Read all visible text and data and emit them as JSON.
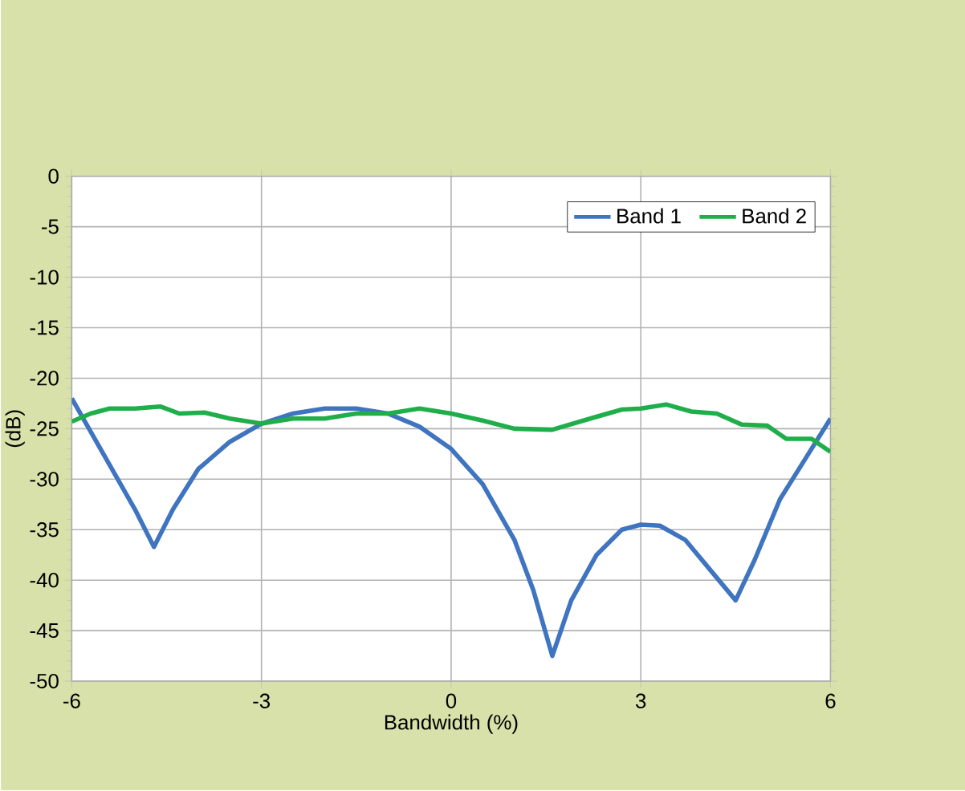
{
  "chart_data": {
    "type": "line",
    "xlabel": "Bandwidth (%)",
    "ylabel": "(dB)",
    "x": [
      -6,
      -5.5,
      -5,
      -4.7,
      -4.4,
      -4,
      -3.5,
      -3,
      -2.5,
      -2,
      -1.5,
      -1,
      -0.5,
      0,
      0.5,
      1,
      1.3,
      1.6,
      1.9,
      2.3,
      2.7,
      3,
      3.3,
      3.7,
      4.1,
      4.5,
      4.8,
      5.2,
      5.6,
      6
    ],
    "series": [
      {
        "name": "Band 1",
        "color": "#3f74c0",
        "values": [
          -22,
          -27.5,
          -33,
          -36.7,
          -33,
          -29,
          -26.3,
          -24.5,
          -23.5,
          -23,
          -23,
          -23.5,
          -24.8,
          -27,
          -30.5,
          -36,
          -41,
          -47.5,
          -42,
          -37.5,
          -35,
          -34.5,
          -34.6,
          -36,
          -39,
          -42,
          -38,
          -32,
          -28,
          -24
        ]
      },
      {
        "name": "Band 2",
        "color": "#1fae4a",
        "x": [
          -6,
          -5.7,
          -5.4,
          -5,
          -4.6,
          -4.3,
          -3.9,
          -3.5,
          -3,
          -2.5,
          -2,
          -1.5,
          -1,
          -0.5,
          0,
          0.5,
          1,
          1.6,
          2.2,
          2.7,
          3,
          3.4,
          3.8,
          4.2,
          4.6,
          5,
          5.3,
          5.7,
          6
        ],
        "values": [
          -24.3,
          -23.5,
          -23,
          -23,
          -22.8,
          -23.5,
          -23.4,
          -24,
          -24.5,
          -24,
          -24,
          -23.5,
          -23.5,
          -23,
          -23.5,
          -24.2,
          -25,
          -25.1,
          -24,
          -23.1,
          -23,
          -22.6,
          -23.3,
          -23.5,
          -24.6,
          -24.7,
          -26,
          -26,
          -27.3
        ]
      }
    ],
    "xlim": [
      -6,
      6
    ],
    "ylim": [
      -50,
      0
    ],
    "xticks": [
      -6,
      -3,
      0,
      3,
      6
    ],
    "yticks": [
      -50,
      -45,
      -40,
      -35,
      -30,
      -25,
      -20,
      -15,
      -10,
      -5,
      0
    ],
    "grid": true,
    "legend": "top right",
    "line_style": "solid",
    "marker": "none"
  }
}
